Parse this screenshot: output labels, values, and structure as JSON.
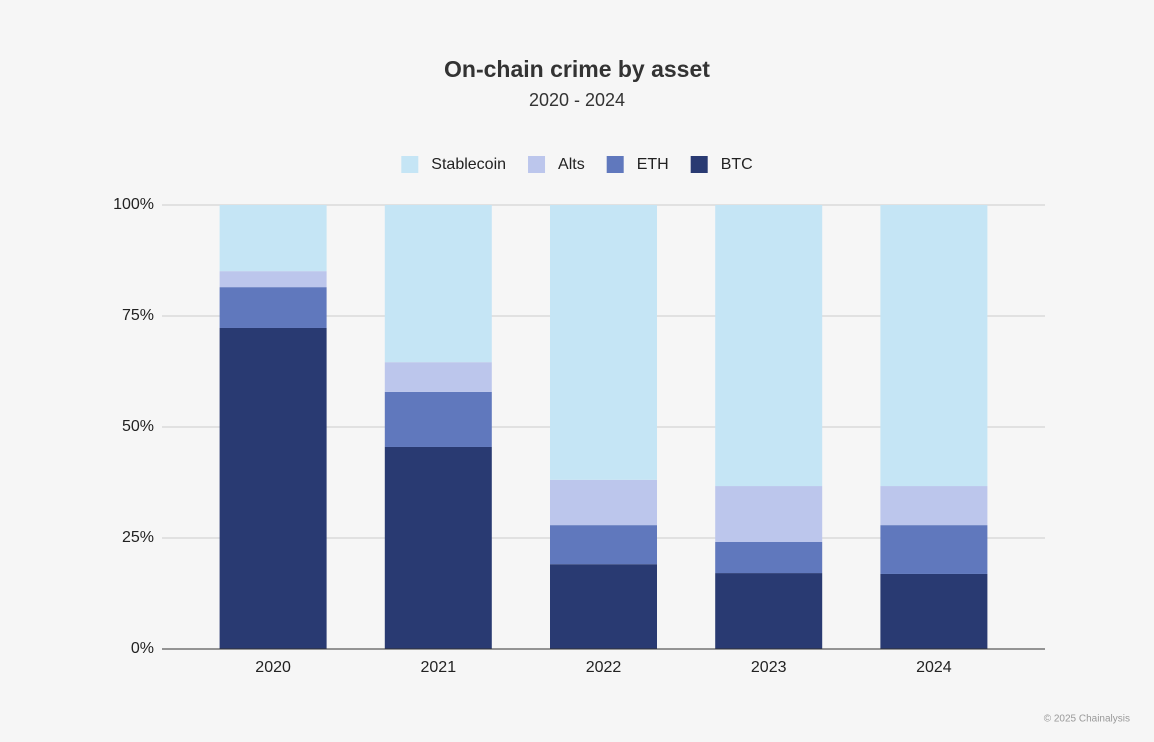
{
  "chart_data": {
    "type": "stacked_bar",
    "title": "On-chain crime by asset",
    "subtitle": "2020 - 2024",
    "categories": [
      "2020",
      "2021",
      "2022",
      "2023",
      "2024"
    ],
    "series": [
      {
        "name": "Stablecoin",
        "color": "#c5e5f5",
        "values": [
          14.9,
          35.4,
          61.9,
          63.3,
          63.3
        ]
      },
      {
        "name": "Alts",
        "color": "#bcc6ec",
        "values": [
          3.6,
          6.7,
          10.2,
          12.6,
          8.8
        ]
      },
      {
        "name": "ETH",
        "color": "#6078bd",
        "values": [
          9.2,
          12.4,
          8.8,
          7.0,
          11.0
        ]
      },
      {
        "name": "BTC",
        "color": "#293a72",
        "values": [
          72.3,
          45.5,
          19.1,
          17.1,
          16.9
        ]
      }
    ],
    "ylim": [
      0,
      100
    ],
    "yticks": [
      {
        "value": 0,
        "label": "0%"
      },
      {
        "value": 25,
        "label": "25%"
      },
      {
        "value": 50,
        "label": "50%"
      },
      {
        "value": 75,
        "label": "75%"
      },
      {
        "value": 100,
        "label": "100%"
      }
    ],
    "grid": true,
    "legend": "top",
    "source": "© 2025 Chainalysis"
  }
}
